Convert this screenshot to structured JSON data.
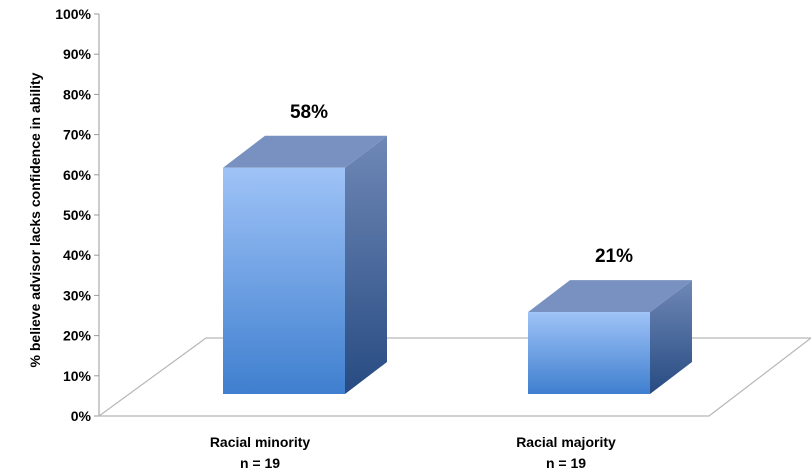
{
  "chart_data": {
    "type": "bar",
    "title": "",
    "xlabel": "",
    "ylabel": "% believe advisor lacks confidence in ability",
    "ylim": [
      0,
      100
    ],
    "yticks": [
      "0%",
      "10%",
      "20%",
      "30%",
      "40%",
      "50%",
      "60%",
      "70%",
      "80%",
      "90%",
      "100%"
    ],
    "categories": [
      "Racial minority",
      "Racial majority"
    ],
    "category_sublabels": [
      "n = 19",
      "n = 19"
    ],
    "values": [
      58,
      21
    ],
    "data_labels": [
      "58%",
      "21%"
    ],
    "grid": false,
    "legend": "none",
    "colors": {
      "bar_front_top": "#9fc3f7",
      "bar_front_bottom": "#3f7fcf",
      "bar_side_top": "#6f88b6",
      "bar_side_bottom": "#274b82",
      "bar_top": "#7991c0",
      "floor_line": "#b7b7b7",
      "axis_line": "#9a9a9a"
    }
  }
}
